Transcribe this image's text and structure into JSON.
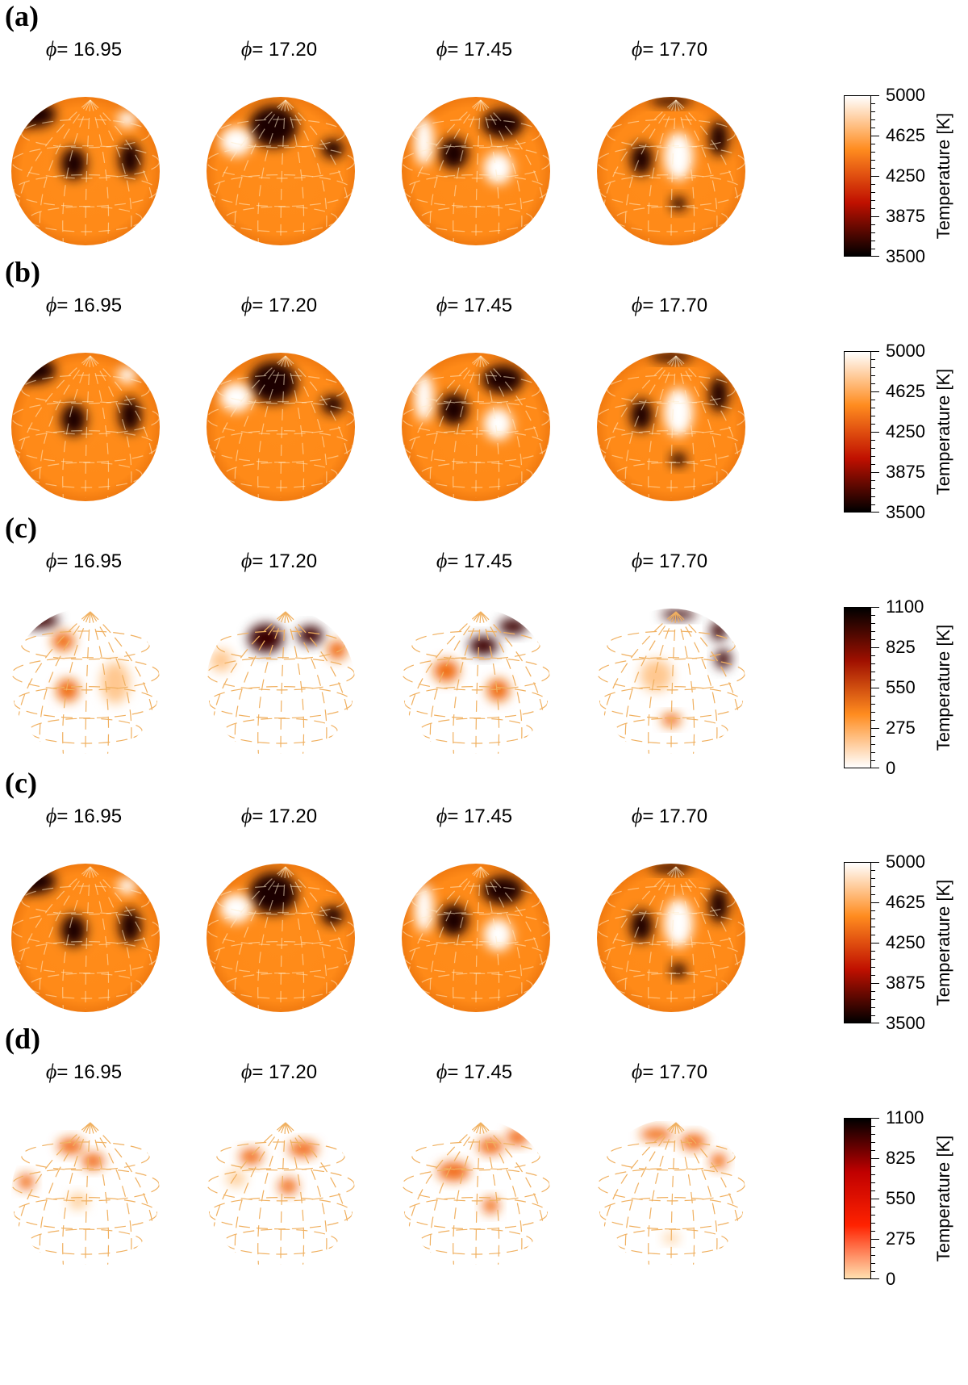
{
  "panels": [
    {
      "label": "(a)",
      "kind": "temp",
      "phases": [
        "16.95",
        "17.20",
        "17.45",
        "17.70"
      ],
      "colorbar": {
        "title": "Temperature [K]",
        "ticks": [
          "5000",
          "4625",
          "4250",
          "3875",
          "3500"
        ],
        "colors": [
          "#ffffff",
          "#ff8c1f",
          "#c01000",
          "#000000"
        ]
      }
    },
    {
      "label": "(b)",
      "kind": "temp",
      "phases": [
        "16.95",
        "17.20",
        "17.45",
        "17.70"
      ],
      "colorbar": {
        "title": "Temperature [K]",
        "ticks": [
          "5000",
          "4625",
          "4250",
          "3875",
          "3500"
        ],
        "colors": [
          "#ffffff",
          "#ff8c1f",
          "#c01000",
          "#000000"
        ]
      }
    },
    {
      "label": "(c)",
      "kind": "diff",
      "phases": [
        "16.95",
        "17.20",
        "17.45",
        "17.70"
      ],
      "colorbar": {
        "title": "Temperature [K]",
        "ticks": [
          "1100",
          "825",
          "550",
          "275",
          "0"
        ],
        "colors": [
          "#000000",
          "#a01000",
          "#ff8c1f",
          "#ffffff"
        ]
      }
    },
    {
      "label": "(c)",
      "kind": "temp",
      "phases": [
        "16.95",
        "17.20",
        "17.45",
        "17.70"
      ],
      "colorbar": {
        "title": "Temperature [K]",
        "ticks": [
          "5000",
          "4625",
          "4250",
          "3875",
          "3500"
        ],
        "colors": [
          "#ffffff",
          "#ff8c1f",
          "#c01000",
          "#000000"
        ]
      }
    },
    {
      "label": "(d)",
      "kind": "diff2",
      "phases": [
        "16.95",
        "17.20",
        "17.45",
        "17.70"
      ],
      "colorbar": {
        "title": "Temperature [K]",
        "ticks": [
          "1100",
          "825",
          "550",
          "275",
          "0"
        ],
        "colors": [
          "#000000",
          "#c00000",
          "#ff2200",
          "#ffe0b0"
        ]
      }
    }
  ],
  "phase_symbol": "ϕ",
  "phase_eq": "= "
}
